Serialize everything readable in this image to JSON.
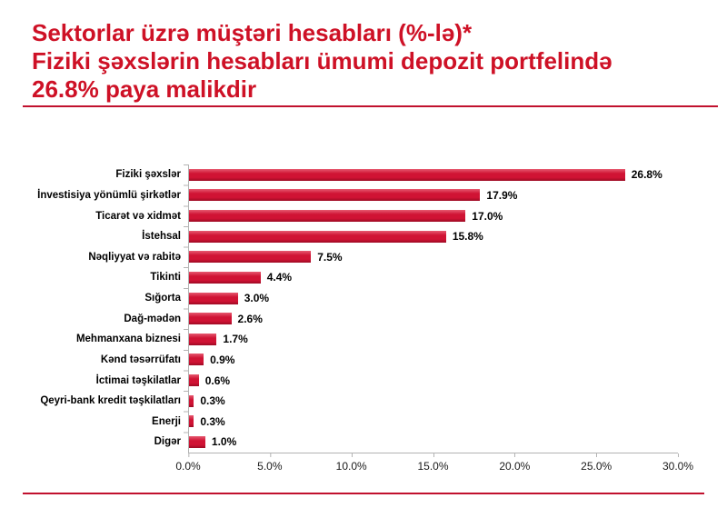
{
  "slide": {
    "title_lines": [
      "Sektorlar üzrə müştəri hesabları (%-lə)*",
      "Fiziki şəxslərin hesabları ümumi depozit portfelində",
      "26.8% paya malikdir"
    ],
    "title_color": "#ce1126",
    "rule_color": "#c1112e",
    "background_color": "#ffffff"
  },
  "chart_data": {
    "type": "bar",
    "orientation": "horizontal",
    "title": "Sektorlar üzrə müştəri hesabları (%-lə)",
    "xlabel": "",
    "ylabel": "",
    "categories": [
      "Fiziki şəxslər",
      "İnvestisiya yönümlü şirkətlər",
      "Ticarət və xidmət",
      "İstehsal",
      "Nəqliyyat və rabitə",
      "Tikinti",
      "Sığorta",
      "Dağ-mədən",
      "Mehmanxana biznesi",
      "Kənd təsərrüfatı",
      "İctimai təşkilatlar",
      "Qeyri-bank kredit təşkilatları",
      "Enerji",
      "Digər"
    ],
    "values": [
      26.8,
      17.9,
      17.0,
      15.8,
      7.5,
      4.4,
      3.0,
      2.6,
      1.7,
      0.9,
      0.6,
      0.3,
      0.3,
      1.0
    ],
    "value_labels": [
      "26.8%",
      "17.9%",
      "17.0%",
      "15.8%",
      "7.5%",
      "4.4%",
      "3.0%",
      "2.6%",
      "1.7%",
      "0.9%",
      "0.6%",
      "0.3%",
      "0.3%",
      "1.0%"
    ],
    "xlim": [
      0,
      30
    ],
    "x_ticks": [
      0,
      5,
      10,
      15,
      20,
      25,
      30
    ],
    "x_tick_labels": [
      "0.0%",
      "5.0%",
      "10.0%",
      "15.0%",
      "20.0%",
      "25.0%",
      "30.0%"
    ],
    "grid": false,
    "legend": false,
    "bar_color": "#d01334",
    "bar_gradient_top": "#e65a70",
    "bar_gradient_bottom": "#9c0a24",
    "axis_color": "#b3b3b3"
  }
}
